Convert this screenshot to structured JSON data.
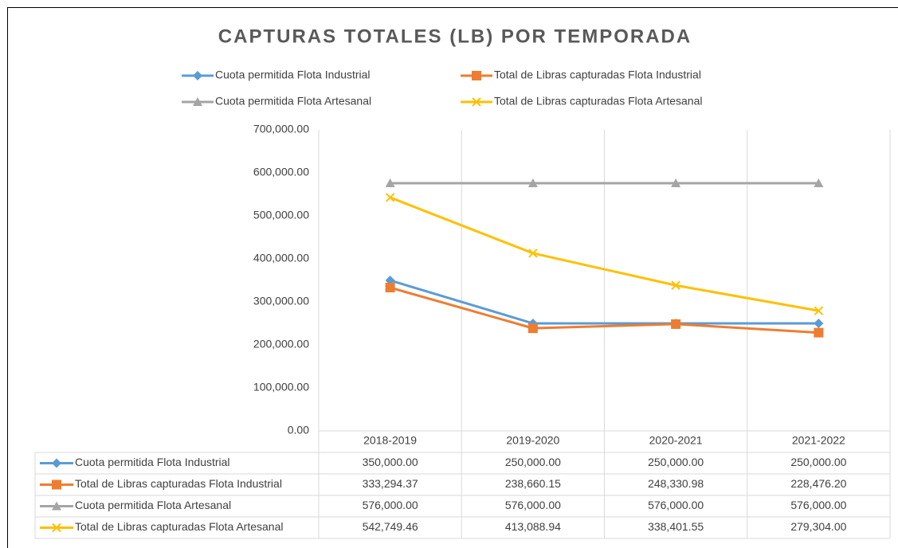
{
  "chart_data": {
    "type": "line",
    "title": "CAPTURAS TOTALES (LB) POR TEMPORADA",
    "categories": [
      "2018-2019",
      "2019-2020",
      "2020-2021",
      "2021-2022"
    ],
    "series": [
      {
        "name": "Cuota permitida Flota Industrial",
        "color": "#5b9bd5",
        "marker": "diamond",
        "values": [
          350000,
          250000,
          250000,
          250000
        ],
        "value_labels": [
          "350,000.00",
          "250,000.00",
          "250,000.00",
          "250,000.00"
        ]
      },
      {
        "name": "Total de Libras capturadas Flota Industrial",
        "color": "#ed7d31",
        "marker": "square",
        "values": [
          333294.37,
          238660.15,
          248330.98,
          228476.2
        ],
        "value_labels": [
          "333,294.37",
          "238,660.15",
          "248,330.98",
          "228,476.20"
        ]
      },
      {
        "name": "Cuota permitida Flota Artesanal",
        "color": "#a5a5a5",
        "marker": "triangle",
        "values": [
          576000,
          576000,
          576000,
          576000
        ],
        "value_labels": [
          "576,000.00",
          "576,000.00",
          "576,000.00",
          "576,000.00"
        ]
      },
      {
        "name": "Total de Libras capturadas Flota Artesanal",
        "color": "#ffc000",
        "marker": "x",
        "values": [
          542749.46,
          413088.94,
          338401.55,
          279304
        ],
        "value_labels": [
          "542,749.46",
          "413,088.94",
          "338,401.55",
          "279,304.00"
        ]
      }
    ],
    "ylim": [
      0,
      700000
    ],
    "yticks": [
      {
        "value": 0,
        "label": "0.00"
      },
      {
        "value": 100000,
        "label": "100,000.00"
      },
      {
        "value": 200000,
        "label": "200,000.00"
      },
      {
        "value": 300000,
        "label": "300,000.00"
      },
      {
        "value": 400000,
        "label": "400,000.00"
      },
      {
        "value": 500000,
        "label": "500,000.00"
      },
      {
        "value": 600000,
        "label": "600,000.00"
      },
      {
        "value": 700000,
        "label": "700,000.00"
      }
    ],
    "grid": "vertical",
    "legend": "top",
    "data_table": true
  }
}
